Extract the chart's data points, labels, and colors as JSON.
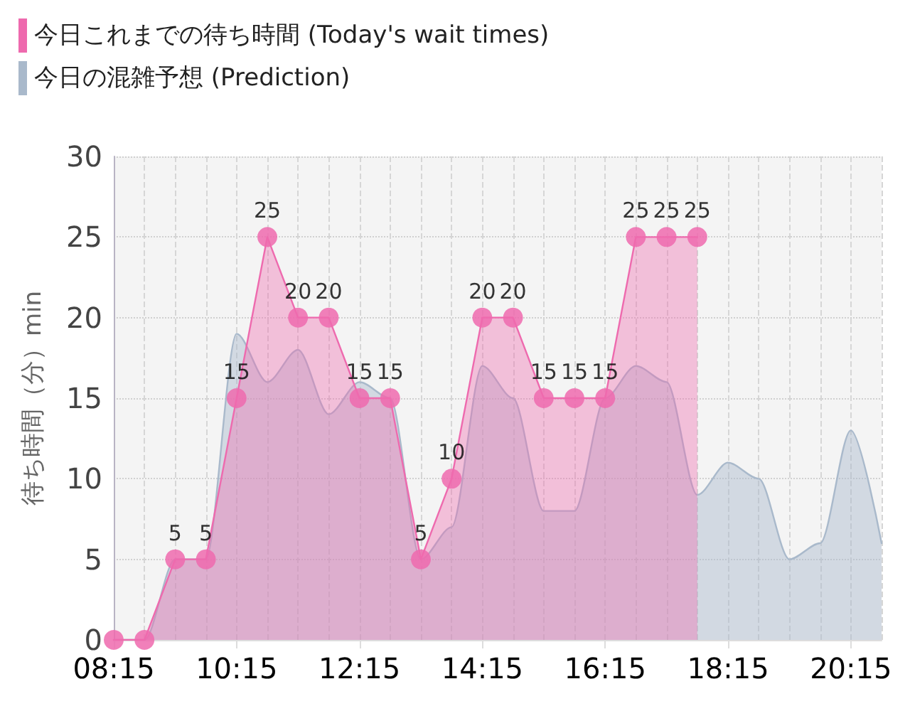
{
  "chart_data": {
    "type": "area",
    "ylabel": "待ち時間（分）min",
    "categories": [
      "08:15",
      null,
      null,
      null,
      "10:15",
      null,
      null,
      null,
      "12:15",
      null,
      null,
      null,
      "14:15",
      null,
      null,
      null,
      "16:15",
      null,
      null,
      null,
      "18:15",
      null,
      null,
      null,
      "20:15",
      null
    ],
    "series": [
      {
        "name": "今日これまでの待ち時間 (Today's wait times)",
        "color": "#ee6aae",
        "marker": "circle",
        "values": [
          0,
          0,
          5,
          5,
          15,
          25,
          20,
          20,
          15,
          15,
          5,
          10,
          20,
          20,
          15,
          15,
          15,
          25,
          25,
          25,
          null,
          null,
          null,
          null,
          null,
          null
        ],
        "value_labels": [
          null,
          null,
          "5",
          "5",
          "15",
          "25",
          "20",
          "20",
          "15",
          "15",
          "5",
          "10",
          "20",
          "20",
          "15",
          "15",
          "15",
          "25",
          "25",
          "25",
          null,
          null,
          null,
          null,
          null,
          null
        ]
      },
      {
        "name": "今日の混雑予想 (Prediction)",
        "color": "#a9b9cb",
        "marker": "none",
        "values": [
          0,
          0,
          5,
          5,
          19,
          16,
          18,
          14,
          16,
          15,
          5,
          7,
          17,
          15,
          8,
          8,
          15,
          17,
          16,
          9,
          11,
          10,
          5,
          6,
          13,
          6
        ]
      }
    ],
    "ylim": [
      0,
      30
    ],
    "yticks": [
      0,
      5,
      10,
      15,
      20,
      25,
      30
    ],
    "grid": true,
    "legend": "top left"
  }
}
